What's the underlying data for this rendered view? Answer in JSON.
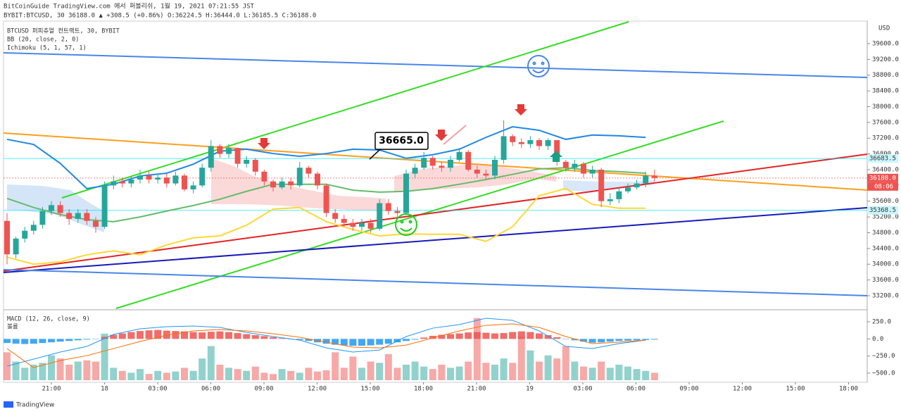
{
  "header": {
    "publisher": "BitCoinGuide TradingView.com 에서 퍼블리쉬, 1월 19, 2021 07:21:55 JST",
    "symbol_line": "BYBIT:BTCUSD, 30  36188.0 ▲ +308.5 (+0.86%) O:36224.5 H:36444.0 L:36185.5 C:36188.0"
  },
  "chart_data": [
    {
      "type": "candlestick",
      "legend": [
        "BTCUSD 퍼피츄얼 컨트랙트, 30, BYBIT",
        "BB (20, close, 2, 0)",
        "Ichimoku (5, 1, 57, 1)"
      ],
      "currency": "USD",
      "ylim": [
        32878,
        40172
      ],
      "yticks": [
        {
          "value": 33200,
          "label": "33200.0"
        },
        {
          "value": 33600,
          "label": "33600.0"
        },
        {
          "value": 34000,
          "label": "34000.0"
        },
        {
          "value": 34400,
          "label": "34400.0"
        },
        {
          "value": 34800,
          "label": "34800.0"
        },
        {
          "value": 35200,
          "label": "35200.0"
        },
        {
          "value": 35600,
          "label": "35600.0"
        },
        {
          "value": 36000,
          "label": "36000.0"
        },
        {
          "value": 36400,
          "label": "36400.0"
        },
        {
          "value": 36800,
          "label": "36800.0"
        },
        {
          "value": 37200,
          "label": "37200.0"
        },
        {
          "value": 37600,
          "label": "37600.0"
        },
        {
          "value": 38000,
          "label": "38000.0"
        },
        {
          "value": 38400,
          "label": "38400.0"
        },
        {
          "value": 38800,
          "label": "38800.0"
        },
        {
          "value": 39200,
          "label": "39200.0"
        },
        {
          "value": 39600,
          "label": "39600.0"
        }
      ],
      "x_labels": [
        "21:00",
        "18",
        "03:00",
        "06:00",
        "09:00",
        "12:00",
        "15:00",
        "18:00",
        "21:00",
        "19",
        "03:00",
        "06:00",
        "09:00",
        "12:00",
        "15:00",
        "18:00"
      ],
      "up_color": "#26a69a",
      "down_color": "#ef5350",
      "open": [
        35100,
        34250,
        34650,
        34850,
        35000,
        35350,
        35500,
        35300,
        35150,
        35300,
        35100,
        34950,
        36000,
        36100,
        36050,
        36150,
        36250,
        36150,
        36200,
        36050,
        36250,
        35900,
        36000,
        36450,
        37000,
        36800,
        36950,
        36550,
        36650,
        36350,
        36100,
        35950,
        36100,
        36000,
        36450,
        36300,
        36000,
        35300,
        35150,
        35050,
        34950,
        35050,
        34900,
        35550,
        35350,
        35300,
        36300,
        36450,
        36700,
        36500,
        36450,
        36650,
        36850,
        36400,
        36300,
        36250,
        36650,
        37250,
        37100,
        37050,
        37150,
        37000,
        37150,
        36600,
        36450,
        36550,
        36300,
        36400,
        35600,
        35650,
        35850,
        35950,
        36050,
        36250
      ],
      "high": [
        35300,
        34700,
        34950,
        35100,
        35450,
        35600,
        35600,
        35400,
        35400,
        35400,
        35200,
        36100,
        36250,
        36200,
        36250,
        36400,
        36350,
        36300,
        36300,
        36350,
        36300,
        36100,
        36550,
        37150,
        37050,
        37050,
        36950,
        36750,
        36700,
        36400,
        36150,
        36200,
        36200,
        36600,
        36500,
        36350,
        36050,
        35400,
        35250,
        35150,
        35150,
        35150,
        35650,
        35650,
        35450,
        36400,
        36550,
        36850,
        36750,
        36600,
        36750,
        36950,
        36900,
        36500,
        36400,
        36750,
        37650,
        37300,
        37200,
        37250,
        37200,
        37200,
        37150,
        36650,
        36650,
        36600,
        36500,
        36450,
        35800,
        35950,
        36050,
        36150,
        36350,
        36400
      ],
      "low": [
        34000,
        34150,
        34550,
        34750,
        34900,
        35250,
        35200,
        35000,
        35050,
        35000,
        34800,
        34900,
        35900,
        35950,
        35950,
        36050,
        36050,
        36050,
        35950,
        36000,
        35850,
        35800,
        35950,
        36350,
        36700,
        36700,
        36450,
        36450,
        36250,
        36000,
        35850,
        35900,
        35900,
        35950,
        36200,
        35900,
        35200,
        35050,
        34950,
        34850,
        34850,
        34800,
        34850,
        35250,
        35200,
        35250,
        36200,
        36400,
        36400,
        36350,
        36350,
        36600,
        36350,
        36200,
        36150,
        36150,
        36550,
        37000,
        36950,
        36950,
        36900,
        36900,
        36500,
        36350,
        36350,
        36200,
        36200,
        35450,
        35500,
        35550,
        35800,
        35900,
        35950,
        36100
      ],
      "close": [
        34250,
        34650,
        34850,
        35000,
        35350,
        35500,
        35300,
        35150,
        35300,
        35100,
        34950,
        36000,
        36100,
        36050,
        36150,
        36250,
        36150,
        36200,
        36050,
        36250,
        35900,
        36000,
        36450,
        37000,
        36800,
        36950,
        36550,
        36650,
        36350,
        36100,
        35950,
        36100,
        36000,
        36450,
        36300,
        36000,
        35300,
        35150,
        35050,
        34950,
        35050,
        34900,
        35550,
        35350,
        35300,
        36300,
        36450,
        36700,
        36500,
        36450,
        36650,
        36850,
        36400,
        36300,
        36250,
        36650,
        37250,
        37100,
        37050,
        37150,
        37000,
        37150,
        36600,
        36450,
        36550,
        36300,
        36400,
        35600,
        35650,
        35850,
        35950,
        36050,
        36250,
        36188
      ],
      "series": [
        {
          "color": "#1e88e5",
          "values": [
            37170,
            37040,
            36560,
            35920,
            36030,
            36240,
            36310,
            36540,
            36870,
            36920,
            36810,
            36740,
            36810,
            36920,
            36900,
            36690,
            36780,
            36920,
            37220,
            37490,
            37400,
            37170,
            37280,
            37260,
            37220
          ]
        },
        {
          "color": "#66bb6a",
          "values": [
            35670,
            35440,
            35260,
            35130,
            35080,
            35200,
            35350,
            35490,
            35650,
            35850,
            36030,
            36030,
            36030,
            35880,
            35830,
            35850,
            35920,
            36030,
            36150,
            36280,
            36420,
            36450,
            36380,
            36350,
            36310
          ]
        },
        {
          "color": "#fdd835",
          "values": [
            34180,
            34000,
            34060,
            34240,
            34340,
            34240,
            34490,
            34670,
            34720,
            34990,
            35400,
            35440,
            35080,
            34880,
            34720,
            34770,
            34760,
            34760,
            34580,
            34950,
            35740,
            35920,
            35520,
            35420,
            35420
          ]
        }
      ],
      "trendlines": [
        {
          "color": "#4a86e8",
          "start": 39368,
          "end": 38742
        },
        {
          "color": "#33dd22",
          "start": 35685,
          "end": 40154
        },
        {
          "color": "#ff9f1c",
          "start": 37330,
          "end": 35882
        },
        {
          "color": "#33dd22",
          "start": 32878,
          "end": 37634
        },
        {
          "color": "#e52222",
          "start": 33826,
          "end": 36793
        },
        {
          "color": "#1a1ab8",
          "start": 33790,
          "end": 35435
        },
        {
          "color": "#4a86e8",
          "start": 33862,
          "end": 33200
        }
      ],
      "levels": [
        {
          "value": 36683.5,
          "label": "36683.5",
          "color": "#00e5ff"
        },
        {
          "value": 36188,
          "label": "36188.0",
          "color": "#ef5350"
        },
        {
          "value": 35368.5,
          "label": "35368.5",
          "color": "#00e5ff"
        }
      ],
      "countdown": "08:06",
      "annotation": {
        "value": 36665,
        "label": "36665.0"
      }
    },
    {
      "type": "macd",
      "legend": [
        "MACD (12, 26, close, 9)",
        "볼륨"
      ],
      "ylim": [
        -603,
        394
      ],
      "yticks": [
        {
          "value": -500,
          "label": "−500.0"
        },
        {
          "value": -250,
          "label": "−250.0"
        },
        {
          "value": 0,
          "label": "0.0"
        },
        {
          "value": 250,
          "label": "250.0"
        }
      ],
      "histogram": [
        -60,
        -70,
        -75,
        -70,
        -60,
        -50,
        -40,
        -30,
        -20,
        -10,
        -5,
        30,
        60,
        80,
        100,
        115,
        125,
        130,
        120,
        115,
        110,
        100,
        95,
        105,
        110,
        100,
        85,
        70,
        55,
        40,
        25,
        10,
        -5,
        -15,
        -30,
        -50,
        -70,
        -85,
        -95,
        -100,
        -100,
        -95,
        -85,
        -70,
        -50,
        -30,
        -10,
        20,
        45,
        60,
        70,
        80,
        95,
        100,
        90,
        80,
        85,
        100,
        110,
        100,
        80,
        55,
        25,
        -5,
        -20,
        -40,
        -55,
        -50,
        -40,
        -30,
        -25,
        -20,
        -15,
        -10
      ],
      "hist_colors": [
        "#ef5350",
        "#2196f3"
      ],
      "series": [
        {
          "color": "#2196f3",
          "values": [
            -398,
            -295,
            -192,
            -110,
            65,
            147,
            178,
            188,
            168,
            95,
            34,
            -18,
            -131,
            -192,
            -162,
            34,
            157,
            209,
            301,
            271,
            116,
            -110,
            -141,
            -69,
            -18
          ]
        },
        {
          "color": "#ff6d00",
          "values": [
            -141,
            -419,
            -316,
            -244,
            -141,
            -38,
            54,
            116,
            137,
            116,
            75,
            24,
            -48,
            -120,
            -131,
            -90,
            13,
            116,
            198,
            219,
            168,
            34,
            -69,
            -48,
            -18
          ]
        }
      ],
      "volume": {
        "ylim": [
          0,
          110
        ],
        "colors": [
          "rgba(38,166,154,0.5)",
          "rgba(239,83,80,0.5)"
        ],
        "values": [
          45,
          30,
          20,
          25,
          28,
          40,
          35,
          25,
          30,
          32,
          30,
          75,
          20,
          15,
          12,
          18,
          10,
          15,
          12,
          14,
          20,
          15,
          35,
          55,
          25,
          20,
          18,
          15,
          22,
          12,
          10,
          18,
          15,
          12,
          20,
          14,
          16,
          45,
          20,
          38,
          20,
          30,
          28,
          42,
          20,
          25,
          30,
          22,
          18,
          25,
          20,
          22,
          30,
          100,
          28,
          25,
          35,
          28,
          70,
          48,
          30,
          40,
          35,
          55,
          30,
          22,
          20,
          30,
          20,
          25,
          22,
          18,
          15,
          12
        ]
      }
    }
  ],
  "footer": "TradingView"
}
